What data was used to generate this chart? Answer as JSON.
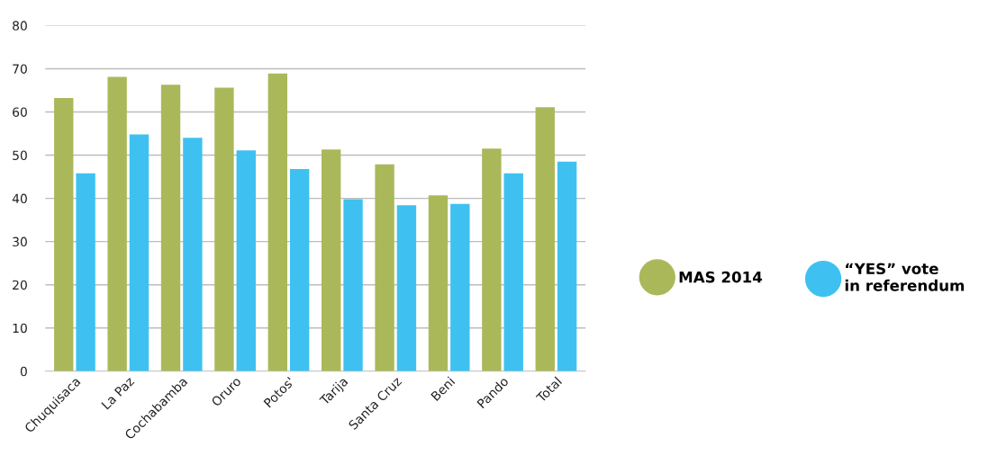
{
  "chart_data": {
    "type": "bar",
    "categories": [
      "Chuquisaca",
      "La Paz",
      "Cochabamba",
      "Oruro",
      "Potos'",
      "Tarija",
      "Santa Cruz",
      "Beni",
      "Pando",
      "Total"
    ],
    "series": [
      {
        "name": "MAS 2014",
        "color": "#abb85a",
        "values": [
          63.2,
          68.1,
          66.3,
          65.6,
          68.9,
          51.3,
          47.9,
          40.7,
          51.5,
          61.1
        ]
      },
      {
        "name": "“YES” vote\nin referendum",
        "color": "#3ec1f0",
        "values": [
          45.8,
          54.8,
          54.0,
          51.1,
          46.8,
          39.8,
          38.4,
          38.7,
          45.8,
          48.5
        ]
      }
    ],
    "ylim": [
      0,
      80
    ],
    "yticks": [
      0,
      10,
      20,
      30,
      40,
      50,
      60,
      70,
      80
    ],
    "grid": "y",
    "legend": "right"
  }
}
